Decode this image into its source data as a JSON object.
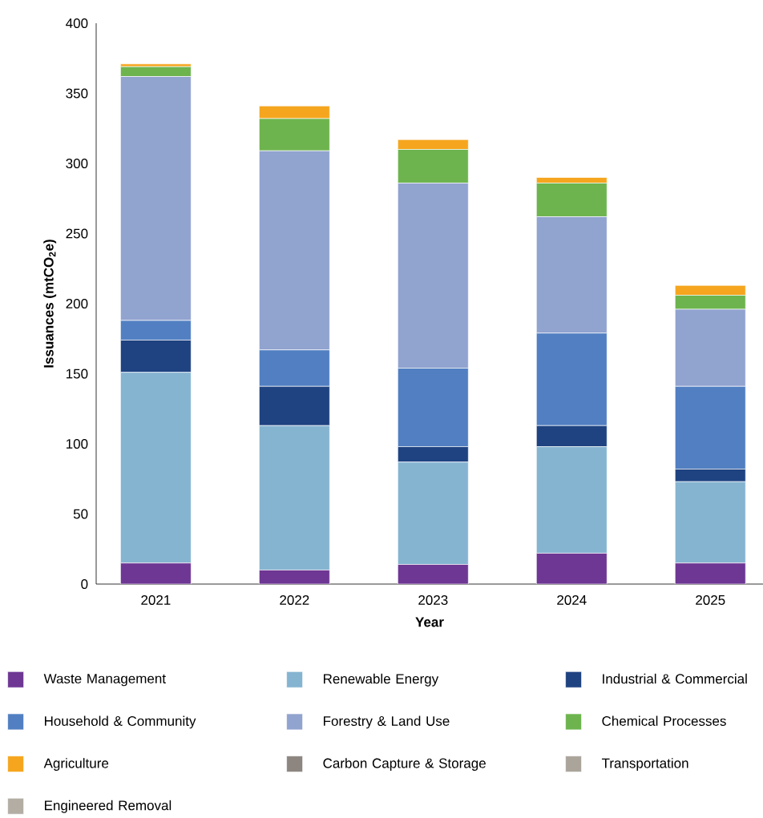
{
  "chart_data": {
    "type": "bar",
    "stacked": true,
    "xlabel": "Year",
    "ylabel": "Issuances (mtCO$_{2}$e)",
    "categories": [
      "2021",
      "2022",
      "2023",
      "2024",
      "2025"
    ],
    "ylim": [
      0,
      400
    ],
    "yticks": [
      0,
      50,
      100,
      150,
      200,
      250,
      300,
      350,
      400
    ],
    "grid": false,
    "legend": "bottom",
    "series": [
      {
        "name": "Waste Management",
        "color": "#6e3794",
        "values": [
          15,
          10,
          14,
          22,
          15
        ]
      },
      {
        "name": "Renewable Energy",
        "color": "#85b4d1",
        "values": [
          136,
          103,
          73,
          76,
          58
        ]
      },
      {
        "name": "Industrial & Commercial",
        "color": "#1f4381",
        "values": [
          23,
          28,
          11,
          15,
          9
        ]
      },
      {
        "name": "Household & Community",
        "color": "#517fc2",
        "values": [
          14,
          26,
          56,
          66,
          59
        ]
      },
      {
        "name": "Forestry & Land Use",
        "color": "#91a3cf",
        "values": [
          174,
          142,
          132,
          83,
          55
        ]
      },
      {
        "name": "Chemical Processes",
        "color": "#6db44e",
        "values": [
          7,
          23,
          24,
          24,
          10
        ]
      },
      {
        "name": "Agriculture",
        "color": "#f5a61e",
        "values": [
          2,
          9,
          7,
          4,
          7
        ]
      },
      {
        "name": "Carbon Capture & Storage",
        "color": "#8c8580",
        "values": [
          0,
          0,
          0,
          0,
          0
        ]
      },
      {
        "name": "Transportation",
        "color": "#aaa49b",
        "values": [
          0,
          0,
          0,
          0,
          0
        ]
      },
      {
        "name": "Engineered Removal",
        "color": "#b3ada4",
        "values": [
          0,
          0,
          0,
          0,
          0
        ]
      }
    ]
  }
}
